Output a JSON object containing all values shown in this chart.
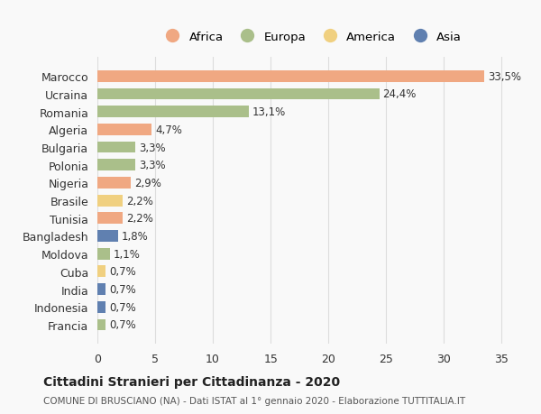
{
  "countries": [
    "Marocco",
    "Ucraina",
    "Romania",
    "Algeria",
    "Bulgaria",
    "Polonia",
    "Nigeria",
    "Brasile",
    "Tunisia",
    "Bangladesh",
    "Moldova",
    "Cuba",
    "India",
    "Indonesia",
    "Francia"
  ],
  "values": [
    33.5,
    24.4,
    13.1,
    4.7,
    3.3,
    3.3,
    2.9,
    2.2,
    2.2,
    1.8,
    1.1,
    0.7,
    0.7,
    0.7,
    0.7
  ],
  "labels": [
    "33,5%",
    "24,4%",
    "13,1%",
    "4,7%",
    "3,3%",
    "3,3%",
    "2,9%",
    "2,2%",
    "2,2%",
    "1,8%",
    "1,1%",
    "0,7%",
    "0,7%",
    "0,7%",
    "0,7%"
  ],
  "continents": [
    "Africa",
    "Europa",
    "Europa",
    "Africa",
    "Europa",
    "Europa",
    "Africa",
    "America",
    "Africa",
    "Asia",
    "Europa",
    "America",
    "Asia",
    "Asia",
    "Europa"
  ],
  "colors": {
    "Africa": "#F0A882",
    "Europa": "#AABF8A",
    "America": "#F0D080",
    "Asia": "#6080B0"
  },
  "legend_items": [
    "Africa",
    "Europa",
    "America",
    "Asia"
  ],
  "legend_colors": [
    "#F0A882",
    "#AABF8A",
    "#F0D080",
    "#6080B0"
  ],
  "xlim": [
    0,
    37
  ],
  "xticks": [
    0,
    5,
    10,
    15,
    20,
    25,
    30,
    35
  ],
  "title": "Cittadini Stranieri per Cittadinanza - 2020",
  "subtitle": "COMUNE DI BRUSCIANO (NA) - Dati ISTAT al 1° gennaio 2020 - Elaborazione TUTTITALIA.IT",
  "background_color": "#f9f9f9",
  "bar_height": 0.65
}
